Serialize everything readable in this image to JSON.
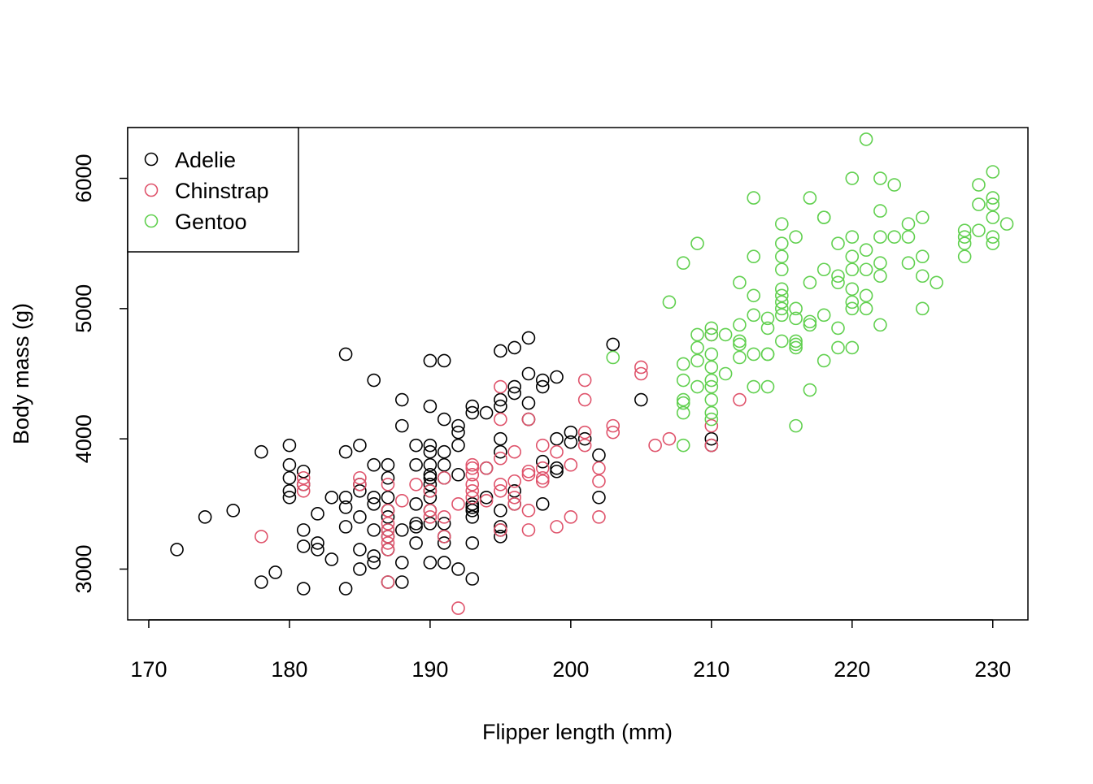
{
  "chart_data": {
    "type": "scatter",
    "title": "",
    "xlabel": "Flipper length (mm)",
    "ylabel": "Body mass (g)",
    "xlim": [
      168.5,
      232.5
    ],
    "ylim": [
      2610,
      6390
    ],
    "x_ticks": [
      170,
      180,
      190,
      200,
      210,
      220,
      230
    ],
    "y_ticks": [
      3000,
      4000,
      5000,
      6000
    ],
    "grid": false,
    "legend_position": "top-left",
    "marker": "open-circle",
    "series": [
      {
        "name": "Adelie",
        "color": "#000000",
        "points": [
          [
            172,
            3150
          ],
          [
            174,
            3400
          ],
          [
            176,
            3450
          ],
          [
            178,
            3900
          ],
          [
            178,
            2900
          ],
          [
            179,
            2975
          ],
          [
            180,
            3950
          ],
          [
            180,
            3800
          ],
          [
            180,
            3700
          ],
          [
            180,
            3600
          ],
          [
            180,
            3550
          ],
          [
            181,
            3750
          ],
          [
            181,
            3650
          ],
          [
            181,
            3300
          ],
          [
            181,
            3175
          ],
          [
            181,
            2850
          ],
          [
            182,
            3425
          ],
          [
            182,
            3200
          ],
          [
            182,
            3150
          ],
          [
            183,
            3550
          ],
          [
            183,
            3075
          ],
          [
            184,
            4650
          ],
          [
            184,
            3900
          ],
          [
            184,
            3550
          ],
          [
            184,
            3475
          ],
          [
            184,
            3325
          ],
          [
            184,
            2850
          ],
          [
            185,
            3950
          ],
          [
            185,
            3650
          ],
          [
            185,
            3600
          ],
          [
            185,
            3400
          ],
          [
            185,
            3150
          ],
          [
            185,
            3000
          ],
          [
            186,
            4450
          ],
          [
            186,
            3800
          ],
          [
            186,
            3550
          ],
          [
            186,
            3500
          ],
          [
            186,
            3300
          ],
          [
            186,
            3100
          ],
          [
            186,
            3050
          ],
          [
            187,
            3800
          ],
          [
            187,
            3700
          ],
          [
            187,
            3550
          ],
          [
            187,
            3450
          ],
          [
            187,
            3400
          ],
          [
            187,
            3300
          ],
          [
            187,
            3250
          ],
          [
            187,
            3150
          ],
          [
            187,
            2900
          ],
          [
            188,
            4300
          ],
          [
            188,
            4100
          ],
          [
            188,
            3300
          ],
          [
            188,
            3050
          ],
          [
            188,
            2900
          ],
          [
            189,
            3950
          ],
          [
            189,
            3800
          ],
          [
            189,
            3500
          ],
          [
            189,
            3350
          ],
          [
            189,
            3325
          ],
          [
            189,
            3200
          ],
          [
            190,
            4600
          ],
          [
            190,
            4250
          ],
          [
            190,
            3950
          ],
          [
            190,
            3900
          ],
          [
            190,
            3800
          ],
          [
            190,
            3725
          ],
          [
            190,
            3700
          ],
          [
            190,
            3650
          ],
          [
            190,
            3600
          ],
          [
            190,
            3550
          ],
          [
            190,
            3450
          ],
          [
            190,
            3350
          ],
          [
            190,
            3050
          ],
          [
            191,
            4600
          ],
          [
            191,
            4150
          ],
          [
            191,
            3900
          ],
          [
            191,
            3800
          ],
          [
            191,
            3700
          ],
          [
            191,
            3350
          ],
          [
            191,
            3250
          ],
          [
            191,
            3200
          ],
          [
            191,
            3050
          ],
          [
            192,
            4100
          ],
          [
            192,
            4050
          ],
          [
            192,
            3950
          ],
          [
            192,
            3725
          ],
          [
            192,
            3000
          ],
          [
            193,
            4250
          ],
          [
            193,
            4200
          ],
          [
            193,
            3500
          ],
          [
            193,
            3475
          ],
          [
            193,
            3450
          ],
          [
            193,
            3400
          ],
          [
            193,
            3200
          ],
          [
            193,
            2925
          ],
          [
            194,
            4200
          ],
          [
            194,
            3775
          ],
          [
            194,
            3550
          ],
          [
            195,
            4675
          ],
          [
            195,
            4300
          ],
          [
            195,
            4250
          ],
          [
            195,
            4000
          ],
          [
            195,
            3900
          ],
          [
            195,
            3450
          ],
          [
            195,
            3325
          ],
          [
            195,
            3300
          ],
          [
            195,
            3250
          ],
          [
            196,
            4700
          ],
          [
            196,
            4400
          ],
          [
            196,
            4350
          ],
          [
            196,
            3600
          ],
          [
            196,
            3500
          ],
          [
            197,
            4775
          ],
          [
            197,
            4500
          ],
          [
            197,
            4275
          ],
          [
            197,
            4150
          ],
          [
            198,
            4450
          ],
          [
            198,
            4400
          ],
          [
            198,
            3825
          ],
          [
            198,
            3500
          ],
          [
            199,
            4475
          ],
          [
            199,
            4000
          ],
          [
            199,
            3775
          ],
          [
            199,
            3750
          ],
          [
            200,
            4050
          ],
          [
            200,
            3975
          ],
          [
            201,
            4000
          ],
          [
            202,
            3875
          ],
          [
            202,
            3550
          ],
          [
            203,
            4725
          ],
          [
            205,
            4300
          ],
          [
            210,
            4000
          ],
          [
            210,
            3950
          ]
        ]
      },
      {
        "name": "Chinstrap",
        "color": "#DF536B",
        "points": [
          [
            178,
            3250
          ],
          [
            181,
            3700
          ],
          [
            181,
            3650
          ],
          [
            181,
            3600
          ],
          [
            185,
            3700
          ],
          [
            185,
            3650
          ],
          [
            187,
            3650
          ],
          [
            187,
            3450
          ],
          [
            187,
            3350
          ],
          [
            187,
            3300
          ],
          [
            187,
            3250
          ],
          [
            187,
            3200
          ],
          [
            187,
            3150
          ],
          [
            187,
            2900
          ],
          [
            188,
            3525
          ],
          [
            189,
            3650
          ],
          [
            190,
            3600
          ],
          [
            190,
            3450
          ],
          [
            190,
            3400
          ],
          [
            191,
            3700
          ],
          [
            191,
            3400
          ],
          [
            191,
            3250
          ],
          [
            192,
            3500
          ],
          [
            192,
            2700
          ],
          [
            193,
            3800
          ],
          [
            193,
            3775
          ],
          [
            193,
            3725
          ],
          [
            193,
            3650
          ],
          [
            193,
            3600
          ],
          [
            193,
            3550
          ],
          [
            194,
            3775
          ],
          [
            194,
            3525
          ],
          [
            195,
            4400
          ],
          [
            195,
            4150
          ],
          [
            195,
            3850
          ],
          [
            195,
            3650
          ],
          [
            195,
            3600
          ],
          [
            195,
            3300
          ],
          [
            196,
            3900
          ],
          [
            196,
            3675
          ],
          [
            196,
            3550
          ],
          [
            196,
            3500
          ],
          [
            197,
            4150
          ],
          [
            197,
            3750
          ],
          [
            197,
            3725
          ],
          [
            197,
            3450
          ],
          [
            197,
            3300
          ],
          [
            198,
            3950
          ],
          [
            198,
            3775
          ],
          [
            198,
            3700
          ],
          [
            198,
            3675
          ],
          [
            199,
            3900
          ],
          [
            199,
            3325
          ],
          [
            200,
            3800
          ],
          [
            200,
            3400
          ],
          [
            201,
            4450
          ],
          [
            201,
            4300
          ],
          [
            201,
            4050
          ],
          [
            201,
            3950
          ],
          [
            202,
            3775
          ],
          [
            202,
            3675
          ],
          [
            202,
            3400
          ],
          [
            203,
            4100
          ],
          [
            203,
            4050
          ],
          [
            205,
            4550
          ],
          [
            205,
            4500
          ],
          [
            206,
            3950
          ],
          [
            207,
            4000
          ],
          [
            210,
            4800
          ],
          [
            210,
            4100
          ],
          [
            210,
            3950
          ],
          [
            212,
            4300
          ]
        ]
      },
      {
        "name": "Gentoo",
        "color": "#61D04F",
        "points": [
          [
            203,
            4625
          ],
          [
            207,
            5050
          ],
          [
            208,
            5350
          ],
          [
            208,
            4575
          ],
          [
            208,
            4450
          ],
          [
            208,
            4300
          ],
          [
            208,
            4275
          ],
          [
            208,
            4200
          ],
          [
            208,
            3950
          ],
          [
            209,
            5500
          ],
          [
            209,
            4800
          ],
          [
            209,
            4700
          ],
          [
            209,
            4600
          ],
          [
            209,
            4400
          ],
          [
            210,
            4850
          ],
          [
            210,
            4800
          ],
          [
            210,
            4650
          ],
          [
            210,
            4550
          ],
          [
            210,
            4450
          ],
          [
            210,
            4400
          ],
          [
            210,
            4300
          ],
          [
            210,
            4200
          ],
          [
            210,
            4150
          ],
          [
            211,
            4800
          ],
          [
            211,
            4500
          ],
          [
            212,
            5200
          ],
          [
            212,
            4875
          ],
          [
            212,
            4750
          ],
          [
            212,
            4725
          ],
          [
            212,
            4625
          ],
          [
            213,
            5850
          ],
          [
            213,
            5400
          ],
          [
            213,
            5100
          ],
          [
            213,
            4950
          ],
          [
            213,
            4650
          ],
          [
            213,
            4400
          ],
          [
            214,
            4925
          ],
          [
            214,
            4850
          ],
          [
            214,
            4650
          ],
          [
            214,
            4650
          ],
          [
            214,
            4400
          ],
          [
            215,
            5650
          ],
          [
            215,
            5500
          ],
          [
            215,
            5400
          ],
          [
            215,
            5300
          ],
          [
            215,
            5150
          ],
          [
            215,
            5100
          ],
          [
            215,
            5050
          ],
          [
            215,
            5000
          ],
          [
            215,
            4950
          ],
          [
            215,
            4750
          ],
          [
            216,
            5550
          ],
          [
            216,
            5000
          ],
          [
            216,
            4925
          ],
          [
            216,
            4750
          ],
          [
            216,
            4725
          ],
          [
            216,
            4700
          ],
          [
            216,
            4100
          ],
          [
            217,
            5850
          ],
          [
            217,
            5200
          ],
          [
            217,
            4900
          ],
          [
            217,
            4875
          ],
          [
            217,
            4375
          ],
          [
            218,
            5700
          ],
          [
            218,
            5700
          ],
          [
            218,
            5300
          ],
          [
            218,
            4950
          ],
          [
            218,
            4600
          ],
          [
            219,
            5500
          ],
          [
            219,
            5250
          ],
          [
            219,
            5200
          ],
          [
            219,
            4850
          ],
          [
            219,
            4700
          ],
          [
            220,
            6000
          ],
          [
            220,
            5550
          ],
          [
            220,
            5400
          ],
          [
            220,
            5300
          ],
          [
            220,
            5150
          ],
          [
            220,
            5050
          ],
          [
            220,
            5000
          ],
          [
            220,
            4700
          ],
          [
            221,
            6300
          ],
          [
            221,
            5450
          ],
          [
            221,
            5300
          ],
          [
            221,
            5100
          ],
          [
            221,
            5000
          ],
          [
            222,
            6000
          ],
          [
            222,
            5750
          ],
          [
            222,
            5550
          ],
          [
            222,
            5350
          ],
          [
            222,
            5250
          ],
          [
            222,
            4875
          ],
          [
            223,
            5950
          ],
          [
            223,
            5550
          ],
          [
            224,
            5650
          ],
          [
            224,
            5550
          ],
          [
            224,
            5350
          ],
          [
            225,
            5700
          ],
          [
            225,
            5400
          ],
          [
            225,
            5250
          ],
          [
            225,
            5000
          ],
          [
            226,
            5200
          ],
          [
            228,
            5600
          ],
          [
            228,
            5550
          ],
          [
            228,
            5500
          ],
          [
            228,
            5400
          ],
          [
            229,
            5950
          ],
          [
            229,
            5800
          ],
          [
            229,
            5600
          ],
          [
            230,
            6050
          ],
          [
            230,
            5850
          ],
          [
            230,
            5800
          ],
          [
            230,
            5700
          ],
          [
            230,
            5550
          ],
          [
            230,
            5500
          ],
          [
            231,
            5650
          ]
        ]
      }
    ]
  }
}
